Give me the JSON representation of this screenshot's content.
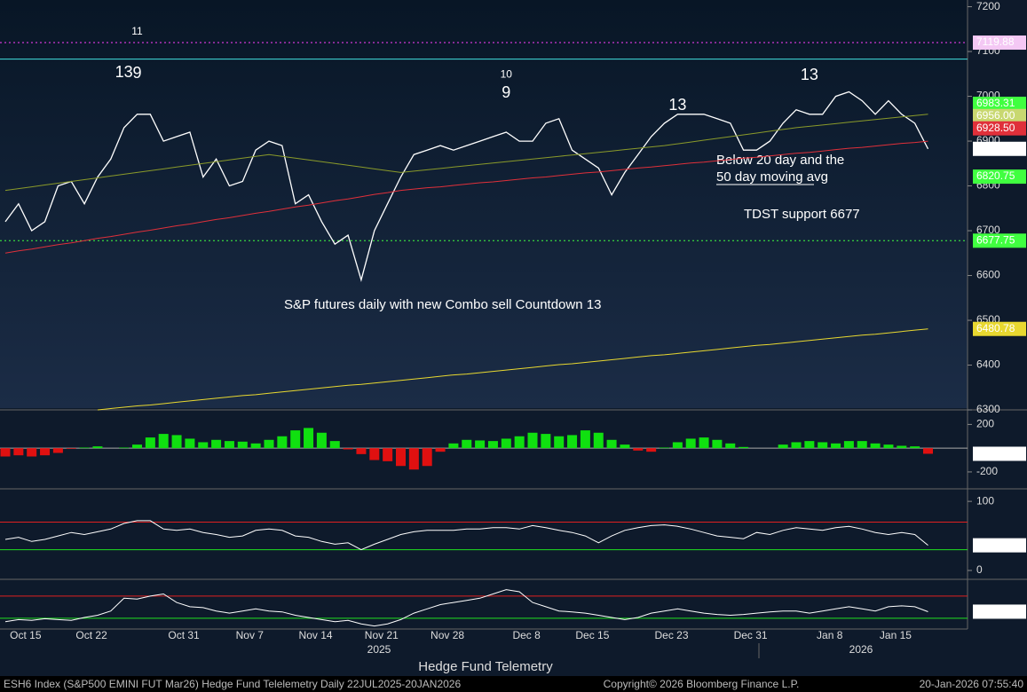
{
  "chart_data": [
    {
      "type": "line",
      "title": "S&P futures daily with new Combo sell Countdown 13",
      "annotations": [
        "Below 20 day and the",
        "50 day moving avg",
        "TDST support 6677"
      ],
      "categories": [
        null,
        "Oct 15",
        null,
        null,
        null,
        null,
        "Oct 22",
        null,
        null,
        null,
        null,
        null,
        null,
        "Oct 31",
        null,
        null,
        null,
        null,
        "Nov 7",
        null,
        null,
        null,
        null,
        "Nov 14",
        null,
        null,
        null,
        null,
        "Nov 21",
        null,
        null,
        null,
        null,
        "Nov 28",
        null,
        null,
        null,
        null,
        null,
        "Dec 8",
        null,
        null,
        null,
        null,
        "Dec 15",
        null,
        null,
        null,
        null,
        null,
        "Dec 23",
        null,
        null,
        null,
        null,
        null,
        "Dec 31",
        null,
        null,
        null,
        null,
        null,
        "Jan 8",
        null,
        null,
        null,
        null,
        "Jan 15",
        null,
        null,
        null
      ],
      "year_labels": [
        "2025",
        "2026"
      ],
      "ylim": [
        6304,
        7215
      ],
      "yticks": [
        6300,
        6400,
        6500,
        6600,
        6700,
        6800,
        6900,
        7000,
        7100,
        7200
      ],
      "series": [
        {
          "color": "#ffffff",
          "values": [
            6720,
            6760,
            6700,
            6720,
            6800,
            6810,
            6760,
            6820,
            6860,
            6930,
            6960,
            6960,
            6900,
            6910,
            6920,
            6820,
            6860,
            6800,
            6810,
            6880,
            6900,
            6890,
            6760,
            6780,
            6720,
            6670,
            6690,
            6590,
            6700,
            6760,
            6820,
            6870,
            6880,
            6890,
            6880,
            6890,
            6900,
            6910,
            6920,
            6900,
            6900,
            6940,
            6950,
            6880,
            6860,
            6840,
            6780,
            6830,
            6870,
            6910,
            6940,
            6960,
            6960,
            6960,
            6950,
            6940,
            6880,
            6880,
            6900,
            6940,
            6970,
            6960,
            6960,
            7000,
            7010,
            6990,
            6960,
            6990,
            6960,
            6940,
            6882.75
          ]
        },
        {
          "color": "#8a9a2a",
          "values": [
            6790,
            6794,
            6798,
            6802,
            6806,
            6810,
            6814,
            6818,
            6822,
            6826,
            6830,
            6834,
            6838,
            6842,
            6846,
            6850,
            6854,
            6858,
            6862,
            6866,
            6870,
            6866,
            6862,
            6858,
            6854,
            6850,
            6846,
            6842,
            6838,
            6834,
            6830,
            6833,
            6836,
            6839,
            6842,
            6845,
            6848,
            6851,
            6854,
            6857,
            6860,
            6863,
            6866,
            6869,
            6872,
            6875,
            6878,
            6881,
            6884,
            6887,
            6890,
            6894,
            6898,
            6902,
            6906,
            6910,
            6914,
            6918,
            6922,
            6926,
            6930,
            6933,
            6936,
            6939,
            6942,
            6945,
            6948,
            6951,
            6954,
            6957,
            6960
          ]
        },
        {
          "color": "#e0303a",
          "values": [
            6650,
            6655,
            6659,
            6664,
            6669,
            6673,
            6678,
            6683,
            6687,
            6692,
            6697,
            6701,
            6706,
            6711,
            6715,
            6720,
            6725,
            6729,
            6734,
            6739,
            6743,
            6748,
            6753,
            6757,
            6762,
            6767,
            6771,
            6776,
            6781,
            6785,
            6790,
            6793,
            6796,
            6798,
            6801,
            6804,
            6807,
            6809,
            6812,
            6815,
            6818,
            6820,
            6823,
            6826,
            6829,
            6831,
            6834,
            6837,
            6840,
            6842,
            6845,
            6848,
            6851,
            6853,
            6856,
            6859,
            6862,
            6864,
            6867,
            6870,
            6873,
            6875,
            6878,
            6881,
            6884,
            6886,
            6889,
            6892,
            6895,
            6897,
            6900
          ]
        },
        {
          "color": "#e8d830",
          "values": [
            null,
            null,
            null,
            null,
            null,
            null,
            null,
            6300,
            6303,
            6306,
            6309,
            6311,
            6314,
            6317,
            6320,
            6323,
            6326,
            6329,
            6332,
            6334,
            6337,
            6340,
            6343,
            6346,
            6349,
            6352,
            6355,
            6357,
            6360,
            6363,
            6366,
            6369,
            6372,
            6375,
            6378,
            6380,
            6383,
            6386,
            6389,
            6392,
            6395,
            6398,
            6401,
            6403,
            6406,
            6409,
            6412,
            6415,
            6418,
            6421,
            6423,
            6426,
            6429,
            6432,
            6435,
            6438,
            6441,
            6444,
            6446,
            6449,
            6452,
            6455,
            6458,
            6461,
            6464,
            6467,
            6469,
            6472,
            6475,
            6478,
            6480.78
          ]
        }
      ],
      "levels": [
        {
          "value": 7119.88,
          "color": "#ff40ff",
          "style": "dotted"
        },
        {
          "value": 7083,
          "color": "#40e0e0",
          "style": "solid"
        },
        {
          "value": 6677.75,
          "color": "#40ff40",
          "style": "dotted"
        }
      ],
      "right_labels": [
        {
          "value": 7119.88,
          "label": "7119.88",
          "color": "#f4c8f4"
        },
        {
          "value": 6983.31,
          "label": "6983.31",
          "color": "#40ff40"
        },
        {
          "value": 6956,
          "label": "6956.00",
          "color": "#c8d870"
        },
        {
          "value": 6928.5,
          "label": "6928.50",
          "color": "#e0303a"
        },
        {
          "value": 6820.75,
          "label": "6820.75",
          "color": "#40ff40"
        },
        {
          "value": 6677.75,
          "label": "6677.75",
          "color": "#40ff40"
        }
      ],
      "demark_labels": [
        {
          "text": "11",
          "x": 10,
          "y": 7144,
          "color": "#ff40ff"
        },
        {
          "text": "13",
          "x": 9,
          "y": 7052,
          "color": "#ff3030"
        },
        {
          "text": "9",
          "x": 10,
          "y": 7050,
          "color": "#40ff40"
        },
        {
          "text": "10",
          "x": 38,
          "y": 7048,
          "color": "#ff3030"
        },
        {
          "text": "9",
          "x": 38,
          "y": 7007,
          "color": "#40ff40"
        },
        {
          "text": "13",
          "x": 51,
          "y": 6979,
          "color": "#ff3030"
        },
        {
          "text": "13",
          "x": 61,
          "y": 7046,
          "color": "#ff40ff"
        }
      ]
    },
    {
      "type": "bar",
      "ylim": [
        -320,
        300
      ],
      "yticks": [
        200,
        -200
      ],
      "positive_color": "#10e010",
      "negative_color": "#e01010",
      "values": [
        -70,
        -60,
        -70,
        -60,
        -40,
        -5,
        5,
        15,
        0,
        5,
        30,
        90,
        120,
        110,
        80,
        50,
        70,
        60,
        55,
        40,
        70,
        100,
        150,
        170,
        130,
        60,
        -10,
        -50,
        -100,
        -110,
        -150,
        -180,
        -150,
        -30,
        40,
        70,
        65,
        60,
        80,
        100,
        130,
        120,
        100,
        110,
        150,
        130,
        70,
        30,
        -20,
        -30,
        5,
        50,
        80,
        90,
        70,
        40,
        10,
        0,
        0,
        30,
        50,
        60,
        50,
        40,
        60,
        60,
        40,
        30,
        20,
        15,
        -47.2734
      ]
    },
    {
      "type": "line",
      "ylim": [
        -9,
        113
      ],
      "yticks": [
        0,
        100
      ],
      "color": "#ffffff",
      "levels": [
        {
          "value": 70,
          "color": "#e02020",
          "style": "solid"
        },
        {
          "value": 30,
          "color": "#20e020",
          "style": "solid"
        }
      ],
      "values": [
        45,
        48,
        42,
        45,
        50,
        55,
        52,
        56,
        60,
        68,
        72,
        72,
        60,
        58,
        60,
        55,
        52,
        48,
        50,
        58,
        60,
        58,
        50,
        48,
        42,
        38,
        40,
        30,
        38,
        45,
        52,
        56,
        58,
        58,
        58,
        60,
        60,
        62,
        62,
        60,
        65,
        62,
        58,
        55,
        50,
        40,
        50,
        58,
        62,
        65,
        66,
        64,
        60,
        55,
        50,
        48,
        46,
        55,
        52,
        58,
        62,
        60,
        58,
        62,
        64,
        60,
        55,
        52,
        55,
        52,
        36.4024
      ]
    },
    {
      "type": "line",
      "ylim": [
        60,
        170
      ],
      "color": "#ffffff",
      "levels": [
        {
          "value": 135,
          "color": "#e02020",
          "style": "solid"
        },
        {
          "value": 83,
          "color": "#20e020",
          "style": "solid"
        }
      ],
      "values": [
        75,
        80,
        78,
        82,
        80,
        78,
        85,
        90,
        100,
        130,
        128,
        135,
        140,
        120,
        110,
        108,
        100,
        95,
        100,
        105,
        100,
        98,
        90,
        85,
        80,
        75,
        78,
        70,
        65,
        70,
        80,
        95,
        105,
        115,
        120,
        125,
        130,
        140,
        150,
        145,
        120,
        110,
        100,
        98,
        95,
        90,
        85,
        80,
        85,
        95,
        100,
        105,
        100,
        95,
        92,
        90,
        92,
        95,
        98,
        100,
        100,
        95,
        100,
        105,
        110,
        105,
        100,
        110,
        112,
        110,
        98.4974
      ]
    }
  ],
  "footer": {
    "title": "Hedge Fund Telemetry",
    "left": "ESH6 Index (S&P500 EMINI FUT  Mar26) Hedge Fund Telelemetry Daily 22JUL2025-20JAN2026",
    "center": "Copyright© 2026 Bloomberg Finance L.P.",
    "right": "20-Jan-2026 07:55:40"
  }
}
